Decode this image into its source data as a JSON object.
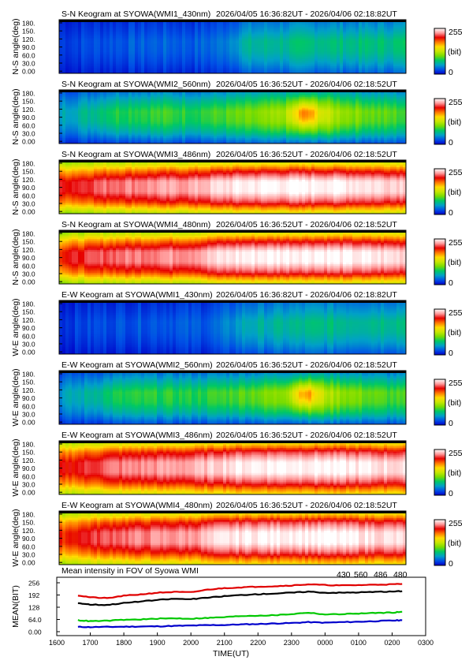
{
  "colors": {
    "scale": [
      "#0000c8",
      "#0050e6",
      "#00a0c8",
      "#00c864",
      "#78dc00",
      "#c8e600",
      "#ffdc00",
      "#ff7800",
      "#e60000",
      "#ff9a9a",
      "#ffffff"
    ],
    "series_430": "#0000cc",
    "series_560": "#00c800",
    "series_486": "#e00000",
    "series_480": "#000000"
  },
  "chart_data": [
    {
      "type": "heatmap",
      "title": "S-N Keogram at SYOWA(WMI1_430nm)",
      "time_range": "2026/04/05 16:36:82UT - 2026/04/06 02:18:82UT",
      "ylabel": "N-S angle(deg)",
      "yticks": [
        "180.",
        "150.",
        "120.",
        "90.0",
        "60.0",
        "30.0",
        "0.00"
      ],
      "ylim": [
        0,
        180
      ],
      "colorbar": {
        "max": "255",
        "unit": "(bit)",
        "min": "0"
      },
      "intensity": [
        20,
        24,
        28,
        30,
        32,
        30,
        36,
        62,
        66,
        70,
        72,
        70,
        72,
        74
      ],
      "profile": [
        0.55,
        0.75,
        1.0,
        0.95,
        0.75,
        0.45
      ],
      "features": [
        {
          "time": "2330",
          "strength": 0
        }
      ]
    },
    {
      "type": "heatmap",
      "title": "S-N Keogram at SYOWA(WMI2_560nm)",
      "time_range": "2026/04/05 16:36:52UT - 2026/04/06 02:18:52UT",
      "ylabel": "N-S angle(deg)",
      "yticks": [
        "180.",
        "150.",
        "120.",
        "90.0",
        "60.0",
        "30.0",
        "0.00"
      ],
      "ylim": [
        0,
        180
      ],
      "colorbar": {
        "max": "255",
        "unit": "(bit)",
        "min": "0"
      },
      "intensity": [
        55,
        66,
        84,
        88,
        90,
        86,
        92,
        100,
        110,
        120,
        126,
        110,
        98,
        92
      ],
      "profile": [
        0.45,
        0.75,
        1.0,
        0.95,
        0.7,
        0.3
      ],
      "features": [
        {
          "time": "2330",
          "strength": 55
        }
      ]
    },
    {
      "type": "heatmap",
      "title": "S-N Keogram at SYOWA(WMI3_486nm)",
      "time_range": "2026/04/05 16:36:52UT - 2026/04/06 02:18:52UT",
      "ylabel": "N-S angle(deg)",
      "yticks": [
        "180.",
        "150.",
        "120.",
        "90.0",
        "60.0",
        "30.0",
        "0.00"
      ],
      "ylim": [
        0,
        180
      ],
      "colorbar": {
        "max": "255",
        "unit": "(bit)",
        "min": "0"
      },
      "intensity": [
        205,
        215,
        225,
        228,
        232,
        234,
        246,
        252,
        254,
        255,
        255,
        252,
        248,
        246
      ],
      "profile": [
        0.5,
        0.8,
        1.0,
        1.0,
        0.85,
        0.55
      ],
      "features": [
        {
          "time": "2330",
          "strength": 0
        }
      ]
    },
    {
      "type": "heatmap",
      "title": "S-N Keogram at SYOWA(WMI4_480nm)",
      "time_range": "2026/04/05 16:36:52UT - 2026/04/06 02:18:52UT",
      "ylabel": "N-S angle(deg)",
      "yticks": [
        "180.",
        "150.",
        "120.",
        "90.0",
        "60.0",
        "30.0",
        "0.00"
      ],
      "ylim": [
        0,
        180
      ],
      "colorbar": {
        "max": "255",
        "unit": "(bit)",
        "min": "0"
      },
      "intensity": [
        200,
        212,
        222,
        226,
        230,
        232,
        246,
        252,
        254,
        255,
        255,
        252,
        248,
        246
      ],
      "profile": [
        0.5,
        0.8,
        1.0,
        1.0,
        0.85,
        0.55
      ],
      "features": [
        {
          "time": "2330",
          "strength": 0
        }
      ]
    },
    {
      "type": "heatmap",
      "title": "E-W Keogram at SYOWA(WMI1_430nm)",
      "time_range": "2026/04/05 16:36:82UT - 2026/04/06 02:18:82UT",
      "ylabel": "W-E angle(deg)",
      "yticks": [
        "180.",
        "150.",
        "120.",
        "90.0",
        "60.0",
        "30.0",
        "0.00"
      ],
      "ylim": [
        0,
        180
      ],
      "colorbar": {
        "max": "255",
        "unit": "(bit)",
        "min": "0"
      },
      "intensity": [
        18,
        22,
        26,
        28,
        30,
        28,
        34,
        58,
        62,
        66,
        70,
        68,
        70,
        72
      ],
      "profile": [
        0.55,
        0.75,
        1.0,
        0.95,
        0.75,
        0.45
      ],
      "features": [
        {
          "time": "2330",
          "strength": 0
        }
      ]
    },
    {
      "type": "heatmap",
      "title": "E-W Keogram at SYOWA(WMI2_560nm)",
      "time_range": "2026/04/05 16:36:52UT - 2026/04/06 02:18:52UT",
      "ylabel": "W-E angle(deg)",
      "yticks": [
        "180.",
        "150.",
        "120.",
        "90.0",
        "60.0",
        "30.0",
        "0.00"
      ],
      "ylim": [
        0,
        180
      ],
      "colorbar": {
        "max": "255",
        "unit": "(bit)",
        "min": "0"
      },
      "intensity": [
        50,
        62,
        80,
        84,
        86,
        84,
        90,
        98,
        106,
        116,
        122,
        108,
        96,
        90
      ],
      "profile": [
        0.4,
        0.7,
        1.0,
        0.95,
        0.7,
        0.3
      ],
      "features": [
        {
          "time": "2330",
          "strength": 55
        }
      ]
    },
    {
      "type": "heatmap",
      "title": "E-W Keogram at SYOWA(WMI3_486nm)",
      "time_range": "2026/04/05 16:36:52UT - 2026/04/06 02:18:52UT",
      "ylabel": "W-E angle(deg)",
      "yticks": [
        "180.",
        "150.",
        "120.",
        "90.0",
        "60.0",
        "30.0",
        "0.00"
      ],
      "ylim": [
        0,
        180
      ],
      "colorbar": {
        "max": "255",
        "unit": "(bit)",
        "min": "0"
      },
      "intensity": [
        200,
        212,
        224,
        228,
        232,
        234,
        246,
        252,
        254,
        255,
        255,
        252,
        248,
        246
      ],
      "profile": [
        0.55,
        0.85,
        1.0,
        1.0,
        0.85,
        0.6
      ],
      "features": [
        {
          "time": "2330",
          "strength": 0
        }
      ]
    },
    {
      "type": "heatmap",
      "title": "E-W Keogram at SYOWA(WMI4_480nm)",
      "time_range": "2026/04/05 16:36:52UT - 2026/04/06 02:18:52UT",
      "ylabel": "W-E angle(deg)",
      "yticks": [
        "180.",
        "150.",
        "120.",
        "90.0",
        "60.0",
        "30.0",
        "0.00"
      ],
      "ylim": [
        0,
        180
      ],
      "colorbar": {
        "max": "255",
        "unit": "(bit)",
        "min": "0"
      },
      "intensity": [
        196,
        210,
        222,
        226,
        230,
        232,
        246,
        252,
        254,
        255,
        255,
        252,
        248,
        246
      ],
      "profile": [
        0.55,
        0.85,
        1.0,
        1.0,
        0.85,
        0.6
      ],
      "features": [
        {
          "time": "2330",
          "strength": 0
        }
      ]
    },
    {
      "type": "line",
      "title": "Mean intensity in FOV of Syowa WMI",
      "xlabel": "TIME(UT)",
      "ylabel": "MEAN(BIT)",
      "xticks": [
        "1600",
        "1700",
        "1800",
        "1900",
        "2000",
        "2100",
        "2200",
        "2300",
        "0000",
        "0100",
        "0200",
        "0300"
      ],
      "yticks": [
        "256",
        "192",
        "128",
        "64.0",
        "0.00"
      ],
      "ylim": [
        0,
        256
      ],
      "legend_position": "top-right",
      "x": [
        "1638",
        "1700",
        "1730",
        "1800",
        "1830",
        "1900",
        "1930",
        "2000",
        "2030",
        "2100",
        "2130",
        "2200",
        "2230",
        "2300",
        "2330",
        "0000",
        "0030",
        "0100",
        "0130",
        "0200",
        "0218"
      ],
      "series": [
        {
          "name": "430",
          "color_key": "series_430",
          "values": [
            25,
            24,
            25,
            26,
            27,
            28,
            30,
            32,
            34,
            35,
            38,
            40,
            43,
            45,
            50,
            47,
            50,
            52,
            55,
            58,
            60
          ]
        },
        {
          "name": "560",
          "color_key": "series_560",
          "values": [
            60,
            55,
            57,
            62,
            64,
            68,
            70,
            68,
            72,
            76,
            82,
            84,
            86,
            92,
            100,
            90,
            92,
            95,
            98,
            100,
            104
          ]
        },
        {
          "name": "486",
          "color_key": "series_486",
          "values": [
            190,
            180,
            175,
            188,
            195,
            204,
            208,
            206,
            220,
            228,
            232,
            236,
            238,
            242,
            248,
            244,
            242,
            244,
            246,
            248,
            250
          ]
        },
        {
          "name": "480",
          "color_key": "series_480",
          "values": [
            150,
            142,
            140,
            150,
            158,
            166,
            172,
            170,
            178,
            186,
            192,
            196,
            200,
            204,
            210,
            204,
            204,
            206,
            208,
            210,
            212
          ]
        }
      ]
    }
  ]
}
